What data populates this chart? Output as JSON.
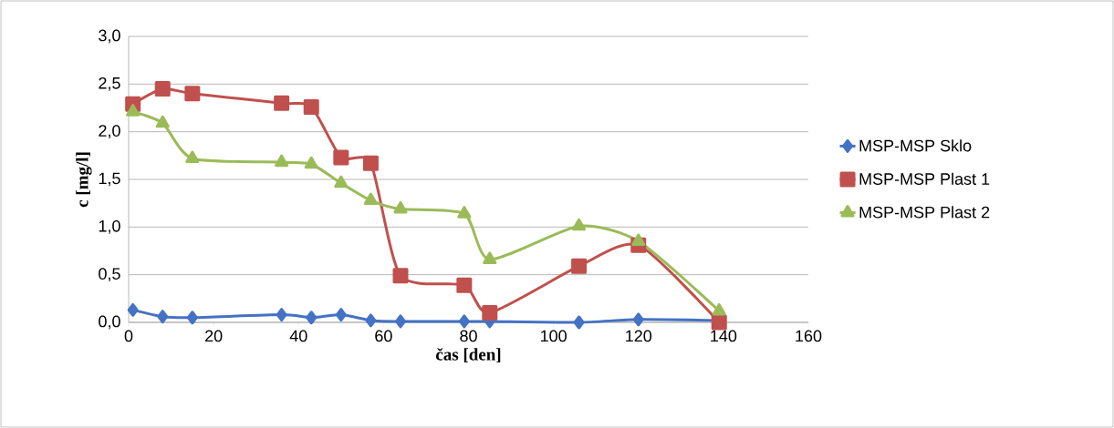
{
  "chart_data": {
    "type": "line",
    "xlabel": "čas [den]",
    "ylabel": "c [mg/l]",
    "x": [
      1,
      8,
      15,
      36,
      43,
      50,
      57,
      64,
      79,
      85,
      106,
      120,
      139
    ],
    "series": [
      {
        "name": "MSP-MSP Sklo",
        "color": "#4472c4",
        "marker": "diamond",
        "values": [
          0.13,
          0.06,
          0.05,
          0.08,
          0.05,
          0.08,
          0.02,
          0.01,
          0.01,
          0.01,
          0.0,
          0.03,
          0.02
        ]
      },
      {
        "name": "MSP-MSP Plast 1",
        "color": "#c0504d",
        "marker": "square",
        "values": [
          2.29,
          2.45,
          2.4,
          2.3,
          2.26,
          1.73,
          1.67,
          0.49,
          0.39,
          0.1,
          0.59,
          0.81,
          0.0
        ]
      },
      {
        "name": "MSP-MSP Plast 2",
        "color": "#9bbb59",
        "marker": "triangle",
        "values": [
          2.21,
          2.09,
          1.72,
          1.68,
          1.66,
          1.46,
          1.28,
          1.19,
          1.14,
          0.66,
          1.01,
          0.85,
          0.12
        ]
      }
    ],
    "xlim": [
      0,
      160
    ],
    "xticks": [
      0,
      20,
      40,
      60,
      80,
      100,
      120,
      140,
      160
    ],
    "ylim": [
      0,
      3.0
    ],
    "yticks": [
      {
        "value": 0,
        "label": "0,0"
      },
      {
        "value": 0.5,
        "label": "0,5"
      },
      {
        "value": 1.0,
        "label": "1,0"
      },
      {
        "value": 1.5,
        "label": "1,5"
      },
      {
        "value": 2.0,
        "label": "2,0"
      },
      {
        "value": 2.5,
        "label": "2,5"
      },
      {
        "value": 3.0,
        "label": "3,0"
      }
    ],
    "grid": "y",
    "legend": "right",
    "line_style": "solid"
  }
}
